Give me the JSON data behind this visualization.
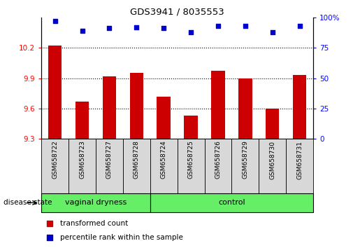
{
  "title": "GDS3941 / 8035553",
  "samples": [
    "GSM658722",
    "GSM658723",
    "GSM658727",
    "GSM658728",
    "GSM658724",
    "GSM658725",
    "GSM658726",
    "GSM658729",
    "GSM658730",
    "GSM658731"
  ],
  "bar_values": [
    10.22,
    9.67,
    9.92,
    9.95,
    9.72,
    9.53,
    9.97,
    9.9,
    9.6,
    9.93
  ],
  "dot_values": [
    97,
    89,
    91,
    92,
    91,
    88,
    93,
    93,
    88,
    93
  ],
  "ylim_left": [
    9.3,
    10.5
  ],
  "ylim_right": [
    0,
    100
  ],
  "yticks_left": [
    9.3,
    9.6,
    9.9,
    10.2
  ],
  "yticks_right": [
    0,
    25,
    50,
    75,
    100
  ],
  "ytick_labels_left": [
    "9.3",
    "9.6",
    "9.9",
    "10.2"
  ],
  "ytick_labels_right": [
    "0",
    "25",
    "50",
    "75",
    "100%"
  ],
  "bar_color": "#cc0000",
  "dot_color": "#0000cc",
  "vaginal_dryness_count": 4,
  "control_count": 6,
  "label_bar": "transformed count",
  "label_dot": "percentile rank within the sample",
  "disease_state_label": "disease state",
  "vaginal_dryness_label": "vaginal dryness",
  "control_label": "control",
  "group_color": "#66ee66",
  "tick_area_color": "#d8d8d8",
  "bar_bottom": 9.3,
  "bar_width": 0.5
}
